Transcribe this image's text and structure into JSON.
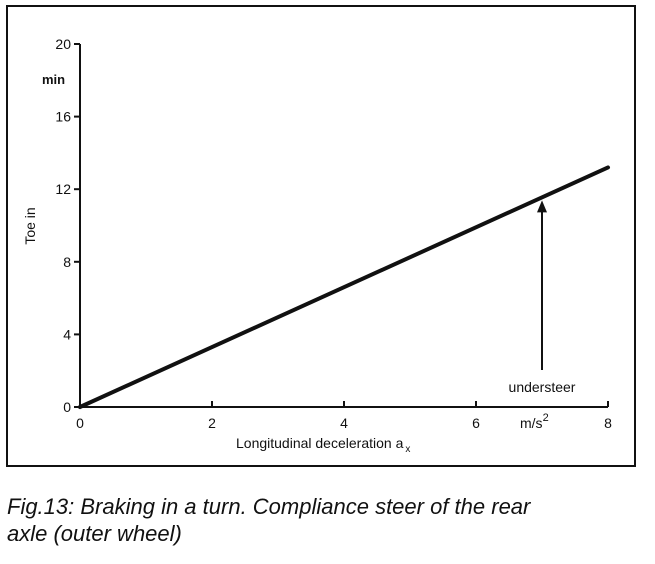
{
  "chart_data": {
    "type": "line",
    "x": [
      0,
      8
    ],
    "y": [
      0,
      13.2
    ],
    "xticks": [
      0,
      2,
      4,
      6,
      8
    ],
    "yticks": [
      0,
      4,
      8,
      12,
      16,
      20
    ],
    "xlim": [
      0,
      8
    ],
    "ylim": [
      0,
      20
    ],
    "xlabel": "Longitudinal deceleration a",
    "xlabel_sub": "x",
    "ylabel": "Toe in",
    "x_unit": "m/s",
    "x_unit_sup": "2",
    "y_unit": "min",
    "annotation": {
      "text": "understeer",
      "x": 7.0,
      "y": 11.55
    },
    "grid": false
  },
  "caption_line1": "Fig.13: Braking in a turn. Compliance steer of the rear",
  "caption_line2": "axle (outer wheel)"
}
